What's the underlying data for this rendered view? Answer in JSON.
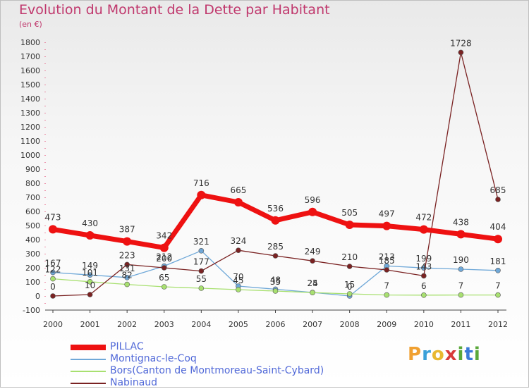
{
  "header": {
    "title": "Evolution du Montant de la Dette par Habitant",
    "unit": "(en €)"
  },
  "logo": {
    "text": "Proxiti"
  },
  "chart_data": {
    "type": "line",
    "title": "Evolution du Montant de la Dette par Habitant",
    "ylabel": "(en €)",
    "xlabel": "",
    "ylim": [
      -100,
      1800
    ],
    "yticks": [
      "-100",
      "0",
      "100",
      "200",
      "300",
      "400",
      "500",
      "600",
      "700",
      "800",
      "900",
      "1000",
      "1100",
      "1200",
      "1300",
      "1400",
      "1500",
      "1600",
      "1700",
      "1800"
    ],
    "categories": [
      "2000",
      "2001",
      "2002",
      "2003",
      "2004",
      "2005",
      "2006",
      "2007",
      "2008",
      "2009",
      "2010",
      "2011",
      "2012"
    ],
    "grid": false,
    "legend_position": "bottom-left",
    "series": [
      {
        "name": "PILLAC",
        "color": "#ee1111",
        "width": 7,
        "marker": 6,
        "emphasis": true,
        "values": [
          473,
          430,
          387,
          342,
          716,
          665,
          536,
          596,
          505,
          497,
          472,
          438,
          404
        ],
        "labels": [
          "473",
          "430",
          "387",
          "342",
          "716",
          "665",
          "536",
          "596",
          "505",
          "497",
          "472",
          "438",
          "404"
        ]
      },
      {
        "name": "Montignac-le-Coq",
        "color": "#6fa8d8",
        "width": 1.3,
        "marker": 3.5,
        "emphasis": false,
        "values": [
          167,
          149,
          131,
          212,
          321,
          70,
          48,
          25,
          0,
          213,
          199,
          190,
          181
        ],
        "labels": [
          "167",
          "149",
          "131",
          "212",
          "321",
          "70",
          "48",
          "25",
          "0",
          "213",
          "199",
          "190",
          "181"
        ]
      },
      {
        "name": "Bors(Canton de Montmoreau-Saint-Cybard)",
        "color": "#a8e070",
        "width": 1.3,
        "marker": 3.5,
        "emphasis": false,
        "values": [
          122,
          101,
          82,
          65,
          55,
          45,
          35,
          24,
          15,
          7,
          6,
          7,
          7
        ],
        "labels": [
          "122",
          "101",
          "82",
          "65",
          "55",
          "45",
          "35",
          "24",
          "15",
          "7",
          "6",
          "7",
          "7"
        ]
      },
      {
        "name": "Nabinaud",
        "color": "#7a2222",
        "width": 1.3,
        "marker": 3.5,
        "emphasis": false,
        "values": [
          0,
          10,
          223,
          200,
          177,
          324,
          285,
          249,
          210,
          185,
          143,
          1728,
          685
        ],
        "labels": [
          "0",
          "10",
          "223",
          "200",
          "177",
          "324",
          "285",
          "249",
          "210",
          "185",
          "143",
          "1728",
          "685"
        ]
      }
    ]
  }
}
